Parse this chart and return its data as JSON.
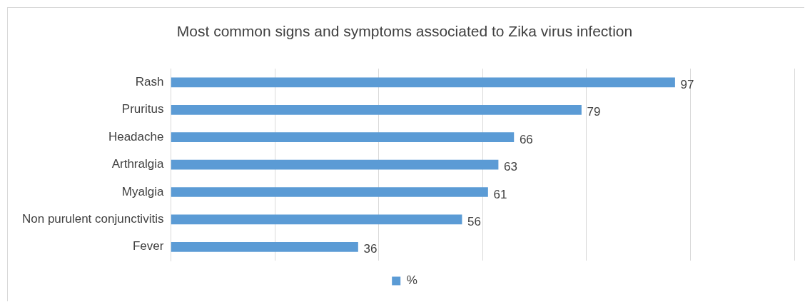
{
  "chart_data": {
    "type": "bar",
    "orientation": "horizontal",
    "title": "Most common signs and symptoms associated to Zika virus infection",
    "categories": [
      "Rash",
      "Pruritus",
      "Headache",
      "Arthralgia",
      "Myalgia",
      "Non purulent conjunctivitis",
      "Fever"
    ],
    "series": [
      {
        "name": "%",
        "color": "#5b9bd5",
        "values": [
          97,
          79,
          66,
          63,
          61,
          56,
          36
        ]
      }
    ],
    "xlim": [
      0,
      120
    ],
    "xticks": [
      {
        "value": 0,
        "label": null
      },
      {
        "value": 20,
        "label": null
      },
      {
        "value": 40,
        "label": null
      },
      {
        "value": 60,
        "label": null
      },
      {
        "value": 80,
        "label": null
      },
      {
        "value": 100,
        "label": null
      },
      {
        "value": 120,
        "label": null
      }
    ],
    "tick_labels": "y",
    "grid": "x",
    "legend": "bottom",
    "data_labels": true
  }
}
